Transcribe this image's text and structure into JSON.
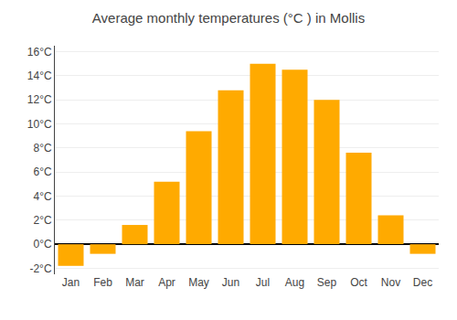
{
  "chart_data": {
    "type": "bar",
    "title": "Average monthly temperatures (°C ) in Mollis",
    "categories": [
      "Jan",
      "Feb",
      "Mar",
      "Apr",
      "May",
      "Jun",
      "Jul",
      "Aug",
      "Sep",
      "Oct",
      "Nov",
      "Dec"
    ],
    "values": [
      -1.8,
      -0.8,
      1.6,
      5.2,
      9.4,
      12.8,
      15.0,
      14.5,
      12.0,
      7.6,
      2.4,
      -0.8
    ],
    "color": "#FFAA00",
    "ylim": [
      -2.5,
      16.5
    ],
    "yticks": [
      {
        "value": -2,
        "label": "-2°C"
      },
      {
        "value": 0,
        "label": "0°C"
      },
      {
        "value": 2,
        "label": "2°C"
      },
      {
        "value": 4,
        "label": "4°C"
      },
      {
        "value": 6,
        "label": "6°C"
      },
      {
        "value": 8,
        "label": "8°C"
      },
      {
        "value": 10,
        "label": "10°C"
      },
      {
        "value": 12,
        "label": "12°C"
      },
      {
        "value": 14,
        "label": "14°C"
      },
      {
        "value": 16,
        "label": "16°C"
      }
    ],
    "grid": true
  }
}
